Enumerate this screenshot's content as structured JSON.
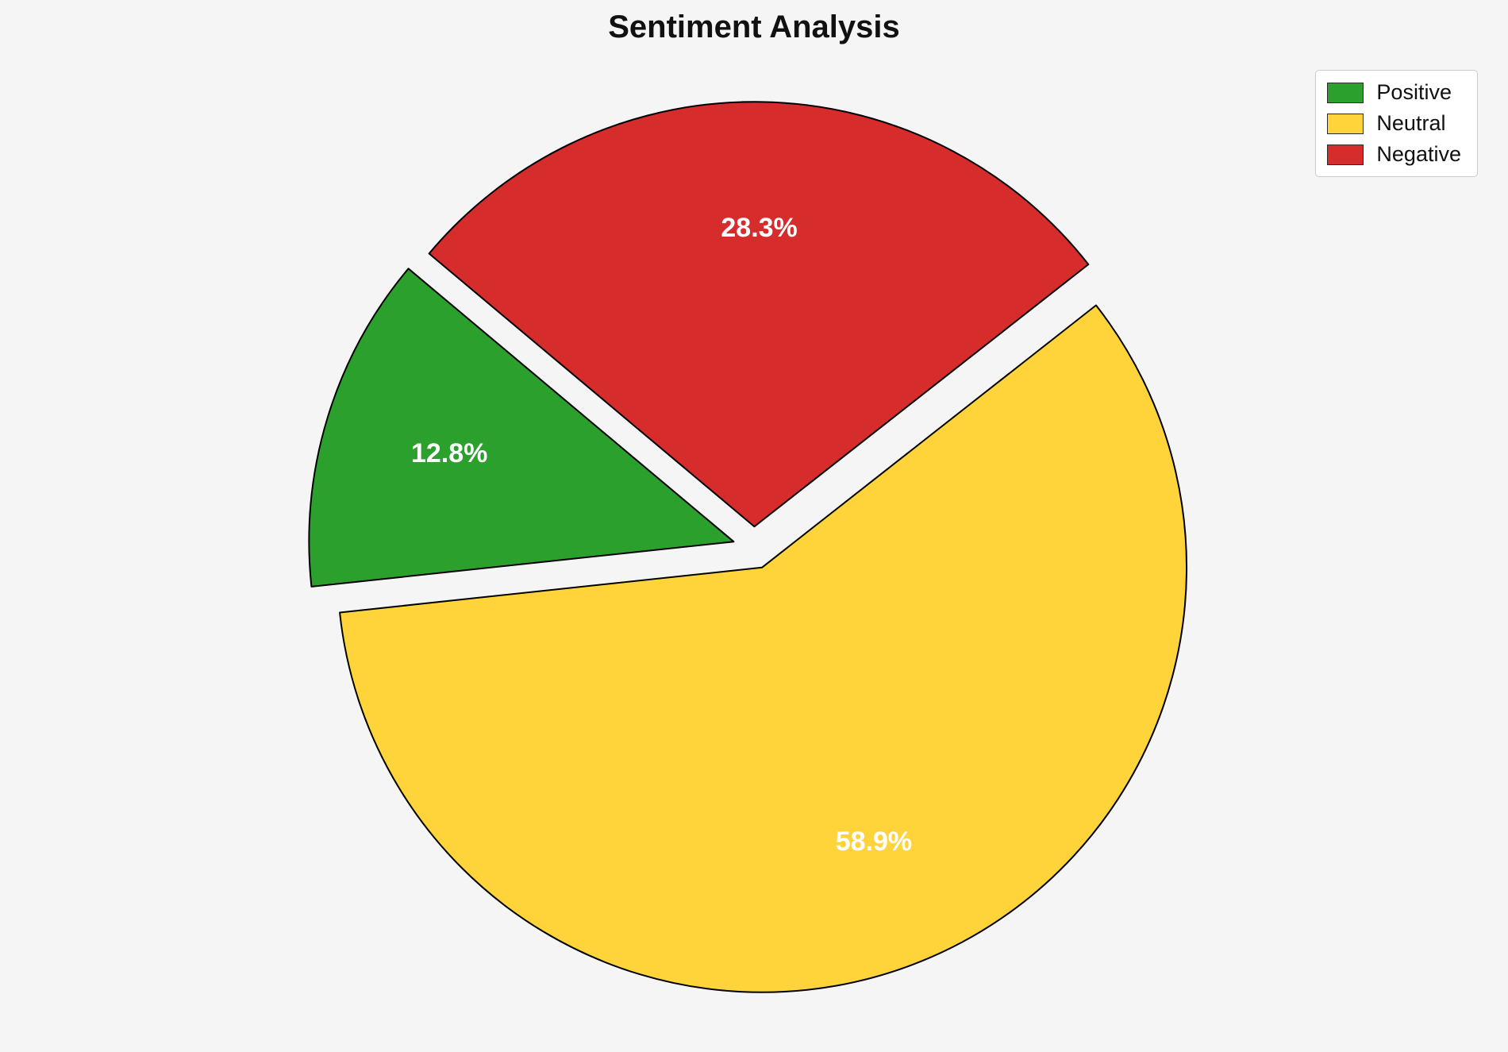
{
  "background_color": "#f5f5f5",
  "title": {
    "text": "Sentiment Analysis"
  },
  "legend": {
    "position": "upper right",
    "items": [
      {
        "label": "Positive",
        "color": "#2ca02c"
      },
      {
        "label": "Neutral",
        "color": "#ffd43b"
      },
      {
        "label": "Negative",
        "color": "#d62c2c"
      }
    ]
  },
  "chart_data": {
    "type": "pie",
    "title": "Sentiment Analysis",
    "labels": [
      "Positive",
      "Neutral",
      "Negative"
    ],
    "values": [
      12.8,
      58.9,
      28.3
    ],
    "percent_labels": [
      "12.8%",
      "58.9%",
      "28.3%"
    ],
    "colors": [
      "#2ca02c",
      "#ffd43b",
      "#d62c2c"
    ],
    "start_angle": 140,
    "direction": "counterclockwise",
    "explode": [
      0.05,
      0.05,
      0.05
    ],
    "edge_color": "#000000",
    "label_color": "#ffffff",
    "legend_position": "upper right"
  }
}
